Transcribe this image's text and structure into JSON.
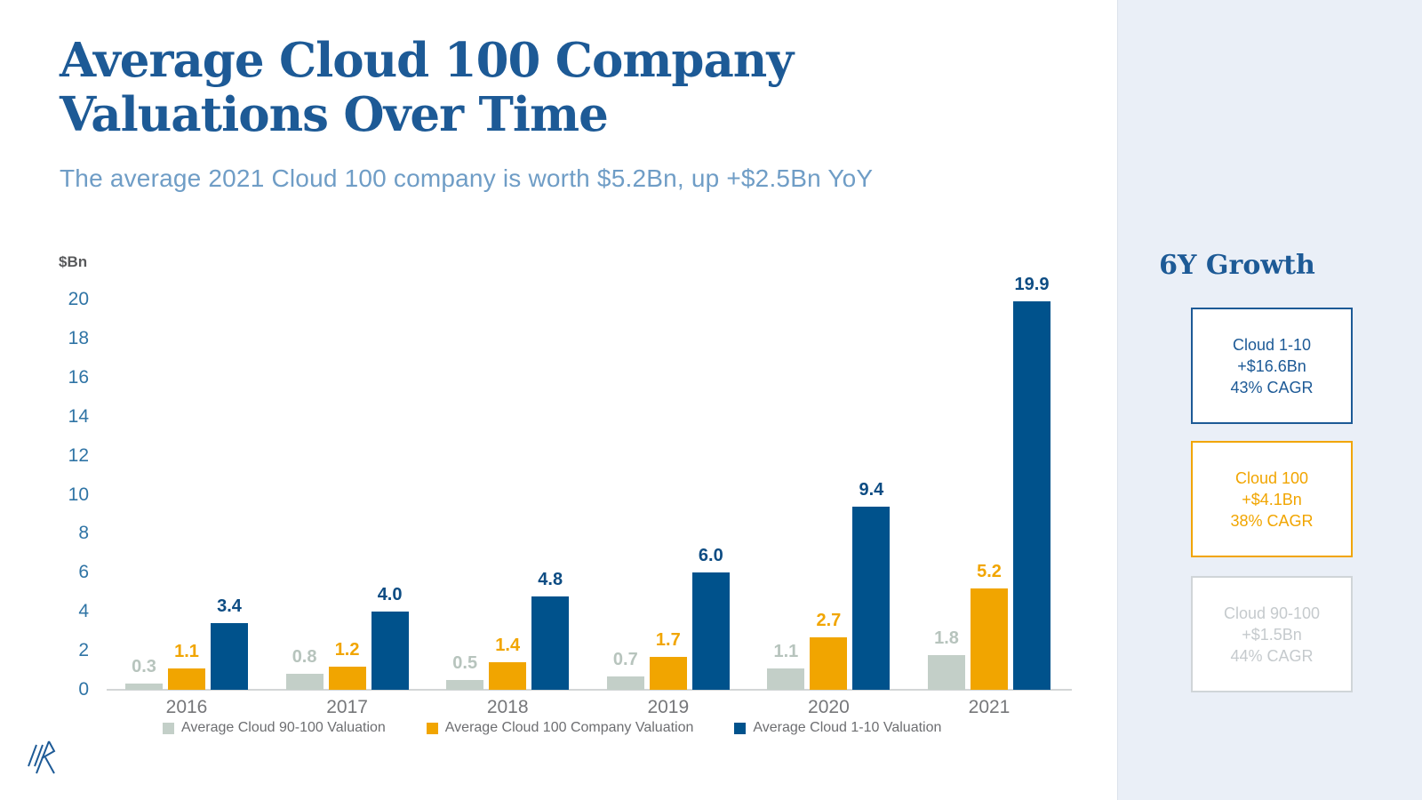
{
  "header": {
    "title_line1": "Average Cloud 100 Company",
    "title_line2": "Valuations Over Time",
    "subtitle": "The average 2021 Cloud 100 company is worth $5.2Bn, up +$2.5Bn YoY"
  },
  "chart_data": {
    "type": "bar",
    "title": "Average Cloud 100 Company Valuations Over Time",
    "y_axis_label": "$Bn",
    "xlabel": "",
    "ylabel": "$Bn",
    "ylim": [
      0,
      20
    ],
    "ytick_step": 2,
    "grid": false,
    "legend_position": "bottom",
    "categories": [
      "2016",
      "2017",
      "2018",
      "2019",
      "2020",
      "2021"
    ],
    "series": [
      {
        "name": "Average Cloud 90-100 Valuation",
        "color": "#c3cfc8",
        "label_color": "#b7c4bd",
        "values": [
          0.3,
          0.8,
          0.5,
          0.7,
          1.1,
          1.8
        ]
      },
      {
        "name": "Average Cloud 100 Company Valuation",
        "color": "#f1a500",
        "label_color": "#f1a500",
        "values": [
          1.1,
          1.2,
          1.4,
          1.7,
          2.7,
          5.2
        ]
      },
      {
        "name": "Average Cloud 1-10 Valuation",
        "color": "#00528c",
        "label_color": "#0d4c83",
        "values": [
          3.4,
          4.0,
          4.8,
          6.0,
          9.4,
          19.9
        ]
      }
    ]
  },
  "sidebar": {
    "title": "6Y Growth",
    "boxes": [
      {
        "name": "Cloud 1-10",
        "growth": "+$16.6Bn",
        "cagr": "43% CAGR",
        "color": "#1d5a96",
        "border_color": "#1d5a96"
      },
      {
        "name": "Cloud 100",
        "growth": "+$4.1Bn",
        "cagr": "38% CAGR",
        "color": "#f1a500",
        "border_color": "#f1a500"
      },
      {
        "name": "Cloud 90-100",
        "growth": "+$1.5Bn",
        "cagr": "44% CAGR",
        "color": "#c5cacd",
        "border_color": "#d0d5d8"
      }
    ]
  },
  "icons": {
    "logo": "bvp-logo"
  }
}
